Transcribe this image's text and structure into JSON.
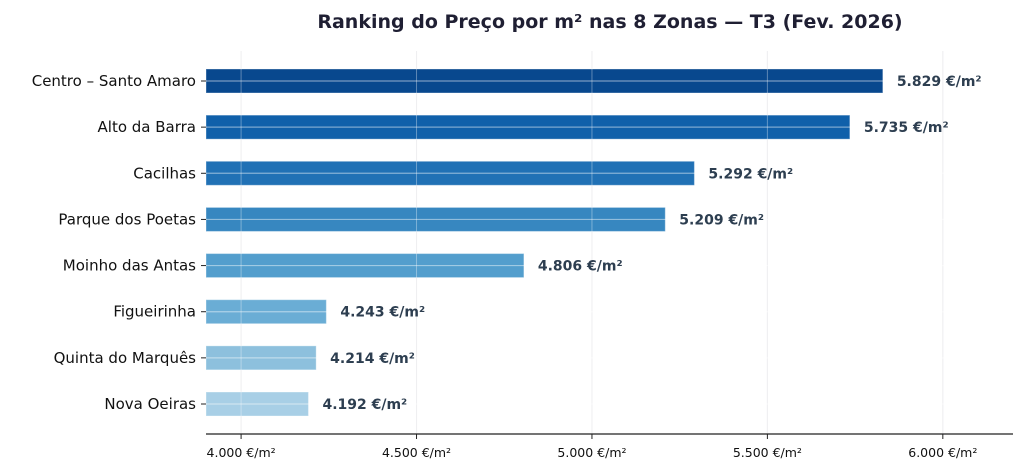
{
  "chart_data": {
    "type": "bar",
    "orientation": "horizontal",
    "title": "Ranking do Preço por m² nas 8 Zonas — T3 (Fev. 2026)",
    "xlabel": "",
    "ylabel": "",
    "categories": [
      "Centro – Santo Amaro",
      "Alto da Barra",
      "Cacilhas",
      "Parque dos Poetas",
      "Moinho das Antas",
      "Figueirinha",
      "Quinta do Marquês",
      "Nova Oeiras"
    ],
    "values": [
      5829,
      5735,
      5292,
      5209,
      4806,
      4243,
      4214,
      4192
    ],
    "data_labels": [
      "5.829 €/m²",
      "5.735 €/m²",
      "5.292 €/m²",
      "5.209 €/m²",
      "4.806 €/m²",
      "4.243 €/m²",
      "4.214 €/m²",
      "4.192 €/m²"
    ],
    "colors": [
      "#08488e",
      "#1060aa",
      "#2171b5",
      "#3787c0",
      "#539ecd",
      "#6aadd5",
      "#8dc0dd",
      "#a8cfe6"
    ],
    "xlim": [
      3900,
      6200
    ],
    "xticks": [
      4000,
      4500,
      5000,
      5500,
      6000
    ],
    "xtick_labels": [
      "4.000 €/m²",
      "4.500 €/m²",
      "5.000 €/m²",
      "5.500 €/m²",
      "6.000 €/m²"
    ],
    "grid": true,
    "legend": "none"
  }
}
